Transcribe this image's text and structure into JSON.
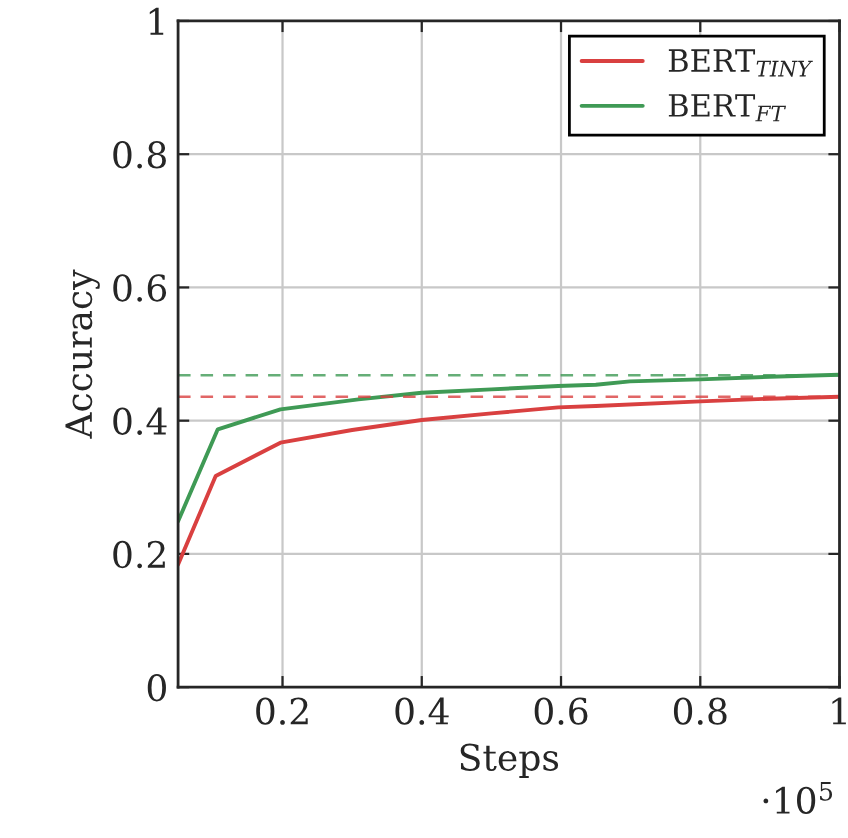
{
  "chart_data": {
    "type": "line",
    "xlabel": "Steps",
    "ylabel": "Accuracy",
    "annotations": [
      "·10$^{5}$"
    ],
    "series": [
      {
        "name": "BERT$_{TINY}$",
        "color": "#d94040",
        "x": [
          0.05,
          0.104,
          0.197,
          0.3,
          0.4,
          0.5,
          0.596,
          0.65,
          0.8,
          0.9,
          1.0
        ],
        "values": [
          0.184,
          0.317,
          0.367,
          0.386,
          0.401,
          0.411,
          0.42,
          0.422,
          0.429,
          0.433,
          0.436
        ]
      },
      {
        "name": "BERT$_{FT}$",
        "color": "#3f9a55",
        "x": [
          0.05,
          0.107,
          0.197,
          0.309,
          0.4,
          0.5,
          0.596,
          0.65,
          0.699,
          0.8,
          0.9,
          1.0
        ],
        "values": [
          0.249,
          0.387,
          0.417,
          0.432,
          0.442,
          0.447,
          0.452,
          0.454,
          0.459,
          0.462,
          0.466,
          0.469
        ]
      }
    ],
    "ref_lines": [
      {
        "axis": "y",
        "value": 0.468,
        "color": "#3f9a55",
        "line_style": "dashed"
      },
      {
        "axis": "y",
        "value": 0.436,
        "color": "#d94040",
        "line_style": "dashed"
      }
    ],
    "xlim": [
      0.05,
      1
    ],
    "xticks": [
      0.2,
      0.4,
      0.6,
      0.8,
      1
    ],
    "ylim": [
      0,
      1
    ],
    "yticks": [
      0,
      0.2,
      0.4,
      0.6,
      0.8,
      1
    ],
    "grid": true,
    "legend": "top right",
    "marker": "none",
    "line_style": "solid"
  }
}
